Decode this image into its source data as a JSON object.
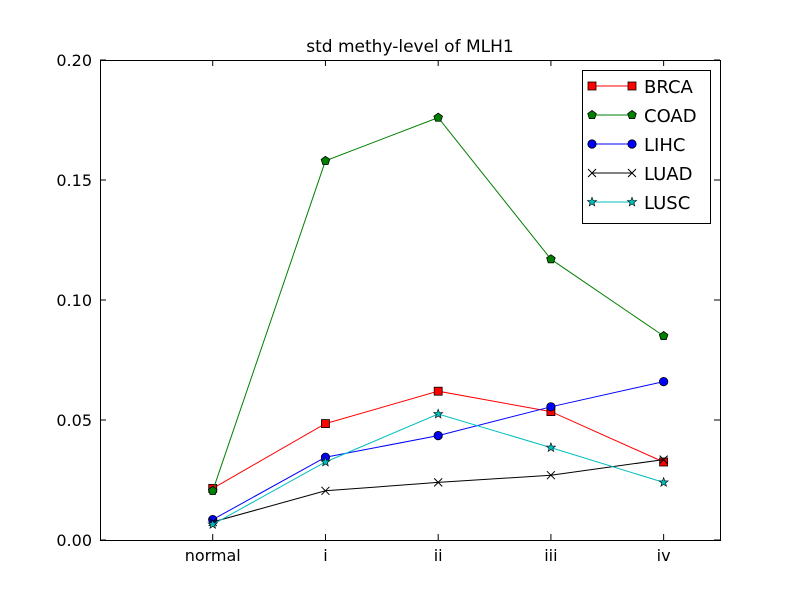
{
  "chart_data": {
    "type": "line",
    "title": "std methy-level of MLH1",
    "xlabel": "",
    "ylabel": "",
    "categories": [
      "normal",
      "i",
      "ii",
      "iii",
      "iv"
    ],
    "ylim": [
      0.0,
      0.2
    ],
    "yticks": [
      0.0,
      0.05,
      0.1,
      0.15,
      0.2
    ],
    "ytick_labels": [
      "0.00",
      "0.05",
      "0.10",
      "0.15",
      "0.20"
    ],
    "legend_position": "top-right",
    "grid": false,
    "series": [
      {
        "name": "BRCA",
        "color": "#ff0000",
        "marker": "square",
        "values": [
          0.0215,
          0.0485,
          0.062,
          0.0535,
          0.0325
        ]
      },
      {
        "name": "COAD",
        "color": "#008000",
        "marker": "pentagon",
        "values": [
          0.0205,
          0.158,
          0.176,
          0.117,
          0.085
        ]
      },
      {
        "name": "LIHC",
        "color": "#0000ff",
        "marker": "circle",
        "values": [
          0.0085,
          0.0345,
          0.0435,
          0.0555,
          0.066
        ]
      },
      {
        "name": "LUAD",
        "color": "#000000",
        "marker": "x",
        "values": [
          0.0075,
          0.0205,
          0.024,
          0.027,
          0.0335
        ]
      },
      {
        "name": "LUSC",
        "color": "#00bfbf",
        "marker": "star",
        "values": [
          0.0065,
          0.0325,
          0.0525,
          0.0385,
          0.024
        ]
      }
    ]
  }
}
